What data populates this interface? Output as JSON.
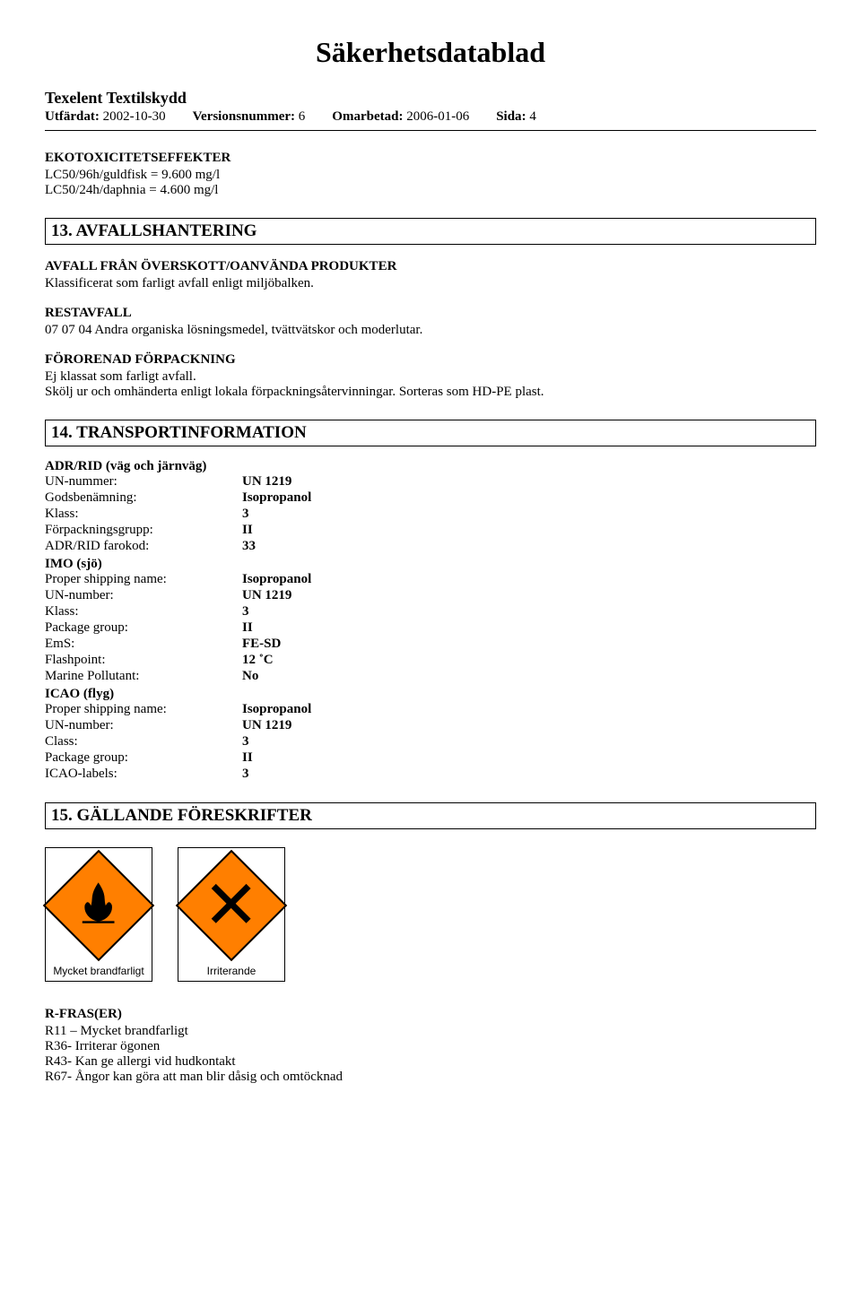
{
  "doc": {
    "main_title": "Säkerhetsdatablad",
    "product": "Texelent Textilskydd",
    "issued_label": "Utfärdat",
    "issued_value": "2002-10-30",
    "version_label": "Versionsnummer",
    "version_value": "6",
    "revised_label": "Omarbetad",
    "revised_value": "2006-01-06",
    "page_label": "Sida",
    "page_value": "4"
  },
  "ecotox": {
    "title": "EKOTOXICITETSEFFEKTER",
    "line1": "LC50/96h/guldfisk = 9.600 mg/l",
    "line2": "LC50/24h/daphnia = 4.600 mg/l"
  },
  "sec13": {
    "title": "13. AVFALLSHANTERING",
    "h1": "AVFALL FRÅN ÖVERSKOTT/OANVÄNDA PRODUKTER",
    "p1": "Klassificerat som farligt avfall enligt miljöbalken.",
    "h2": "RESTAVFALL",
    "p2": "07 07 04 Andra organiska lösningsmedel, tvättvätskor och moderlutar.",
    "h3": "FÖRORENAD FÖRPACKNING",
    "p3a": "Ej klassat som farligt avfall.",
    "p3b": "Skölj ur och omhänderta enligt lokala förpackningsåtervinningar. Sorteras som HD-PE plast."
  },
  "sec14": {
    "title": "14. TRANSPORTINFORMATION",
    "adr_head": "ADR/RID (väg och järnväg)",
    "rows_adr": [
      {
        "k": "UN-nummer:",
        "v": "UN 1219"
      },
      {
        "k": "Godsbenämning:",
        "v": "Isopropanol"
      },
      {
        "k": "Klass:",
        "v": "3"
      },
      {
        "k": "Förpackningsgrupp:",
        "v": "II"
      },
      {
        "k": "ADR/RID farokod:",
        "v": "33"
      }
    ],
    "imo_head": "IMO (sjö)",
    "rows_imo": [
      {
        "k": "Proper shipping name:",
        "v": "Isopropanol"
      },
      {
        "k": "UN-number:",
        "v": "UN 1219"
      },
      {
        "k": "Klass:",
        "v": "3"
      },
      {
        "k": "Package group:",
        "v": "II"
      },
      {
        "k": "EmS:",
        "v": "FE-SD"
      },
      {
        "k": "Flashpoint:",
        "v": "12 ˚C"
      },
      {
        "k": "Marine Pollutant:",
        "v": "No"
      }
    ],
    "icao_head": "ICAO (flyg)",
    "rows_icao": [
      {
        "k": "Proper shipping name:",
        "v": "Isopropanol"
      },
      {
        "k": "UN-number:",
        "v": "UN 1219"
      },
      {
        "k": "Class:",
        "v": "3"
      },
      {
        "k": "Package group:",
        "v": "II"
      },
      {
        "k": "ICAO-labels:",
        "v": "3"
      }
    ]
  },
  "sec15": {
    "title": "15. GÄLLANDE FÖRESKRIFTER",
    "hazard_labels": [
      "Mycket brandfarligt",
      "Irriterande"
    ],
    "rfras_head": "R-FRAS(ER)",
    "rfras": [
      "R11 – Mycket brandfarligt",
      "R36- Irriterar ögonen",
      "R43- Kan ge allergi vid hudkontakt",
      "R67- Ångor kan göra att man blir dåsig och omtöcknad"
    ]
  },
  "style": {
    "hazard_bg": "#ff7f00"
  }
}
